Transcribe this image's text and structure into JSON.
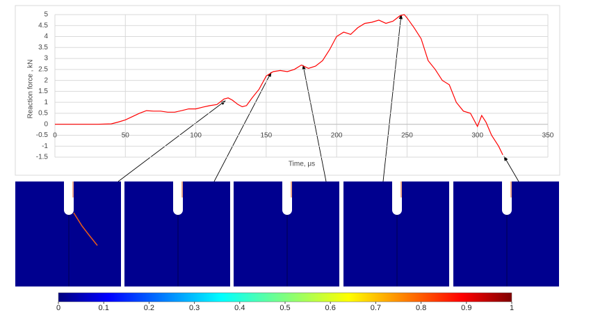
{
  "chart_data": {
    "type": "line",
    "y_label": "Reaction force , kN",
    "x_label": "Time, μs",
    "x": [
      0,
      10,
      20,
      30,
      40,
      45,
      50,
      55,
      60,
      65,
      70,
      75,
      80,
      85,
      90,
      95,
      100,
      105,
      110,
      115,
      120,
      123,
      126,
      130,
      133,
      136,
      140,
      145,
      150,
      155,
      160,
      165,
      170,
      175,
      180,
      185,
      190,
      195,
      200,
      205,
      210,
      215,
      220,
      225,
      230,
      235,
      240,
      245,
      248,
      250,
      255,
      260,
      265,
      270,
      275,
      280,
      285,
      290,
      295,
      300,
      303,
      306,
      310,
      315,
      318
    ],
    "values": [
      0,
      0,
      0,
      0,
      0.02,
      0.1,
      0.2,
      0.35,
      0.5,
      0.62,
      0.6,
      0.6,
      0.55,
      0.55,
      0.62,
      0.7,
      0.7,
      0.78,
      0.85,
      0.9,
      1.15,
      1.2,
      1.1,
      0.9,
      0.8,
      0.85,
      1.2,
      1.6,
      2.2,
      2.4,
      2.45,
      2.4,
      2.5,
      2.7,
      2.55,
      2.65,
      2.9,
      3.4,
      4.0,
      4.2,
      4.1,
      4.4,
      4.6,
      4.65,
      4.75,
      4.6,
      4.7,
      4.95,
      5.0,
      4.85,
      4.4,
      3.9,
      2.9,
      2.5,
      2.0,
      1.8,
      1.0,
      0.6,
      0.5,
      -0.1,
      0.4,
      0.1,
      -0.5,
      -1.0,
      -1.4
    ],
    "color": "#ff0000",
    "xlim": [
      0,
      350
    ],
    "xticks": [
      0,
      50,
      100,
      150,
      200,
      250,
      300,
      350
    ],
    "ylim": [
      -1.5,
      5
    ],
    "yticks": [
      -1.5,
      -1,
      -0.5,
      0,
      0.5,
      1,
      1.5,
      2,
      2.5,
      3,
      3.5,
      4,
      4.5,
      5
    ],
    "grid": true
  },
  "colorbar": {
    "lim": [
      0,
      1
    ],
    "ticks": [
      0,
      0.1,
      0.2,
      0.3,
      0.4,
      0.5,
      0.6,
      0.7,
      0.8,
      0.9,
      1
    ]
  }
}
